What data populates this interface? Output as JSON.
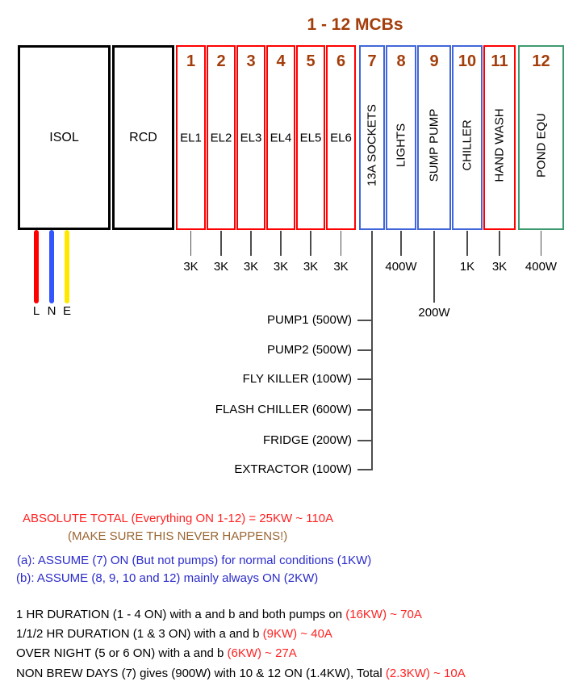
{
  "title": "1 - 12 MCBs",
  "colors": {
    "title_brown": "#A33E0B",
    "mcb_red": "#FF0000",
    "mcb_blue": "#4166D9",
    "mcb_green": "#3D9A70",
    "note_red": "#FF2222",
    "note_brown": "#996633",
    "note_blue": "#2B2BCC"
  },
  "panel": {
    "isol_label": "ISOL",
    "rcd_label": "RCD",
    "wires": [
      {
        "label": "L",
        "color": "#FF0000"
      },
      {
        "label": "N",
        "color": "#3355FF"
      },
      {
        "label": "E",
        "color": "#FFE800"
      }
    ]
  },
  "mcbs": [
    {
      "number": "1",
      "label": "EL1",
      "border": "red",
      "rating": "3K"
    },
    {
      "number": "2",
      "label": "EL2",
      "border": "red",
      "rating": "3K"
    },
    {
      "number": "3",
      "label": "EL3",
      "border": "red",
      "rating": "3K"
    },
    {
      "number": "4",
      "label": "EL4",
      "border": "red",
      "rating": "3K"
    },
    {
      "number": "5",
      "label": "EL5",
      "border": "red",
      "rating": "3K"
    },
    {
      "number": "6",
      "label": "EL6",
      "border": "red",
      "rating": "3K"
    },
    {
      "number": "7",
      "label": "13A SOCKETS",
      "border": "blue",
      "rating": null
    },
    {
      "number": "8",
      "label": "LIGHTS",
      "border": "blue",
      "rating": "400W"
    },
    {
      "number": "9",
      "label": "SUMP PUMP",
      "border": "blue",
      "rating": "200W"
    },
    {
      "number": "10",
      "label": "CHILLER",
      "border": "blue",
      "rating": "1K"
    },
    {
      "number": "11",
      "label": "HAND WASH",
      "border": "red",
      "rating": "3K"
    },
    {
      "number": "12",
      "label": "POND EQU",
      "border": "green",
      "rating": "400W"
    }
  ],
  "socket_loads": [
    {
      "label": "PUMP1 (500W)"
    },
    {
      "label": "PUMP2 (500W)"
    },
    {
      "label": "FLY KILLER (100W)"
    },
    {
      "label": "FLASH CHILLER (600W)"
    },
    {
      "label": "FRIDGE (200W)"
    },
    {
      "label": "EXTRACTOR (100W)"
    }
  ],
  "notes": {
    "absolute_total": "ABSOLUTE TOTAL (Everything ON 1-12) = 25KW ~ 110A",
    "warning": "(MAKE SURE THIS NEVER HAPPENS!)",
    "assumption_a": "(a): ASSUME (7) ON (But not pumps) for normal conditions (1KW)",
    "assumption_b": "(b): ASSUME (8, 9, 10 and 12) mainly always ON (2KW)",
    "scenarios": [
      {
        "text": "1 HR DURATION (1 - 4 ON) with a and b and both pumps on ",
        "value": "(16KW) ~ 70A"
      },
      {
        "text": "1/1/2 HR DURATION (1 & 3 ON) with a and b ",
        "value": "(9KW) ~ 40A"
      },
      {
        "text": "OVER NIGHT (5 or 6 ON) with a and b ",
        "value": "(6KW) ~ 27A"
      },
      {
        "text": "NON BREW DAYS (7) gives (900W) with 10 & 12 ON (1.4KW), Total ",
        "value": "(2.3KW) ~ 10A"
      }
    ]
  }
}
